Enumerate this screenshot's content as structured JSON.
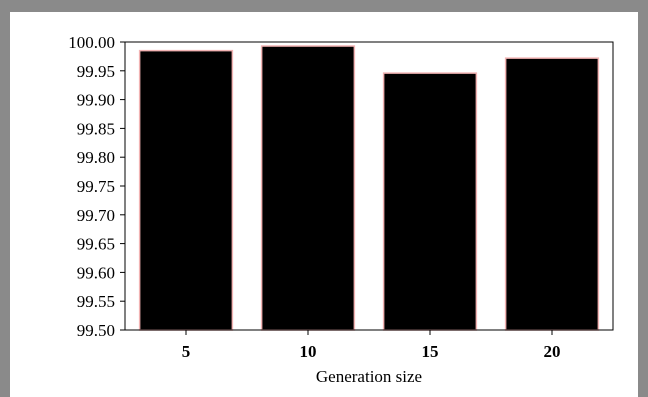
{
  "chart_data": {
    "type": "bar",
    "categories": [
      "5",
      "10",
      "15",
      "20"
    ],
    "values": [
      99.985,
      99.993,
      99.946,
      99.972
    ],
    "xlabel": "Generation size",
    "ylabel": "",
    "ylim": [
      99.5,
      100.0
    ],
    "yticks": [
      "99.50",
      "99.55",
      "99.60",
      "99.65",
      "99.70",
      "99.75",
      "99.80",
      "99.85",
      "99.90",
      "99.95",
      "100.00"
    ],
    "grid": false,
    "colors": {
      "bar_fill": "#000000",
      "bar_edge": "#f2b3b3",
      "frame_border": "#8a8a8a",
      "axis": "#000000"
    }
  }
}
